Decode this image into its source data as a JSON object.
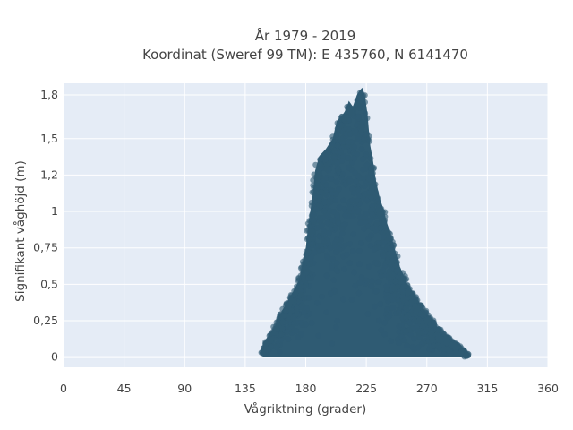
{
  "chart_data": {
    "type": "scatter",
    "title_lines": [
      "År 1979 - 2019",
      "Koordinat (Sweref 99 TM): E 435760, N 6141470"
    ],
    "xlabel": "Vågriktning (grader)",
    "ylabel": "Signifikant våghöjd (m)",
    "xlim": [
      0,
      360
    ],
    "ylim": [
      -0.07,
      1.88
    ],
    "x_ticks": [
      0,
      45,
      90,
      135,
      180,
      225,
      270,
      315,
      360
    ],
    "x_tick_labels": [
      "0",
      "45",
      "90",
      "135",
      "180",
      "225",
      "270",
      "315",
      "360"
    ],
    "y_ticks": [
      0,
      0.25,
      0.5,
      0.75,
      1,
      1.25,
      1.5,
      1.8
    ],
    "y_tick_labels": [
      "0",
      "0,25",
      "0,5",
      "0,75",
      "1",
      "1,2",
      "1,5",
      "1,8"
    ],
    "grid": true,
    "marker_color": "#2F5B73",
    "point_cloud_envelope": {
      "min_direction": 148,
      "peak_direction": 222,
      "max_direction": 300,
      "min_height": 0.0,
      "peak_height": 1.85,
      "outline": [
        [
          148,
          0.03
        ],
        [
          150,
          0.09
        ],
        [
          155,
          0.17
        ],
        [
          160,
          0.27
        ],
        [
          163,
          0.33
        ],
        [
          170,
          0.44
        ],
        [
          175,
          0.53
        ],
        [
          180,
          0.75
        ],
        [
          182,
          0.92
        ],
        [
          185,
          1.1
        ],
        [
          187,
          1.28
        ],
        [
          190,
          1.38
        ],
        [
          195,
          1.43
        ],
        [
          200,
          1.5
        ],
        [
          203,
          1.62
        ],
        [
          207,
          1.66
        ],
        [
          210,
          1.7
        ],
        [
          212,
          1.76
        ],
        [
          215,
          1.72
        ],
        [
          218,
          1.8
        ],
        [
          220,
          1.83
        ],
        [
          222,
          1.85
        ],
        [
          224,
          1.8
        ],
        [
          226,
          1.66
        ],
        [
          227,
          1.55
        ],
        [
          228,
          1.45
        ],
        [
          230,
          1.35
        ],
        [
          232,
          1.22
        ],
        [
          235,
          1.09
        ],
        [
          238,
          1.01
        ],
        [
          240,
          0.93
        ],
        [
          243,
          0.85
        ],
        [
          246,
          0.75
        ],
        [
          250,
          0.62
        ],
        [
          255,
          0.51
        ],
        [
          260,
          0.44
        ],
        [
          265,
          0.37
        ],
        [
          270,
          0.3
        ],
        [
          275,
          0.24
        ],
        [
          280,
          0.18
        ],
        [
          285,
          0.14
        ],
        [
          290,
          0.1
        ],
        [
          295,
          0.07
        ],
        [
          298,
          0.04
        ],
        [
          300,
          0.02
        ]
      ]
    }
  }
}
